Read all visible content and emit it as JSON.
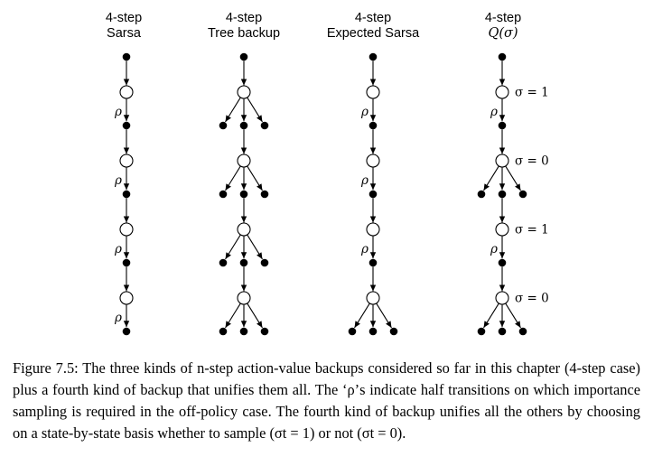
{
  "columns": [
    {
      "id": "sarsa",
      "title_line1": "4-step",
      "title_line2": "Sarsa",
      "title_line2_is_math": false,
      "levels": [
        {
          "branching": 1,
          "rho": true,
          "sigma": ""
        },
        {
          "branching": 1,
          "rho": true,
          "sigma": ""
        },
        {
          "branching": 1,
          "rho": true,
          "sigma": ""
        },
        {
          "branching": 1,
          "rho": true,
          "sigma": ""
        }
      ]
    },
    {
      "id": "tree-backup",
      "title_line1": "4-step",
      "title_line2": "Tree backup",
      "title_line2_is_math": false,
      "levels": [
        {
          "branching": 3,
          "rho": false,
          "sigma": ""
        },
        {
          "branching": 3,
          "rho": false,
          "sigma": ""
        },
        {
          "branching": 3,
          "rho": false,
          "sigma": ""
        },
        {
          "branching": 3,
          "rho": false,
          "sigma": ""
        }
      ]
    },
    {
      "id": "expected-sarsa",
      "title_line1": "4-step",
      "title_line2": "Expected Sarsa",
      "title_line2_is_math": false,
      "levels": [
        {
          "branching": 1,
          "rho": true,
          "sigma": ""
        },
        {
          "branching": 1,
          "rho": true,
          "sigma": ""
        },
        {
          "branching": 1,
          "rho": true,
          "sigma": ""
        },
        {
          "branching": 3,
          "rho": false,
          "sigma": ""
        }
      ]
    },
    {
      "id": "q-sigma",
      "title_line1": "4-step",
      "title_line2": "Q(σ)",
      "title_line2_is_math": true,
      "levels": [
        {
          "branching": 1,
          "rho": true,
          "sigma": "σ = 1"
        },
        {
          "branching": 3,
          "rho": false,
          "sigma": "σ = 0"
        },
        {
          "branching": 1,
          "rho": true,
          "sigma": "σ = 1"
        },
        {
          "branching": 3,
          "rho": false,
          "sigma": "σ = 0"
        }
      ]
    }
  ],
  "rho_symbol": "ρ",
  "caption": "Figure 7.5: The three kinds of n-step action-value backups considered so far in this chapter (4-step case) plus a fourth kind of backup that unifies them all. The ‘ρ’s indicate half transitions on which importance sampling is required in the off-policy case. The fourth kind of backup unifies all the others by choosing on a state-by-state basis whether to sample (σt = 1) or not (σt = 0).",
  "colors": {
    "ink": "#000000",
    "background": "#ffffff"
  }
}
